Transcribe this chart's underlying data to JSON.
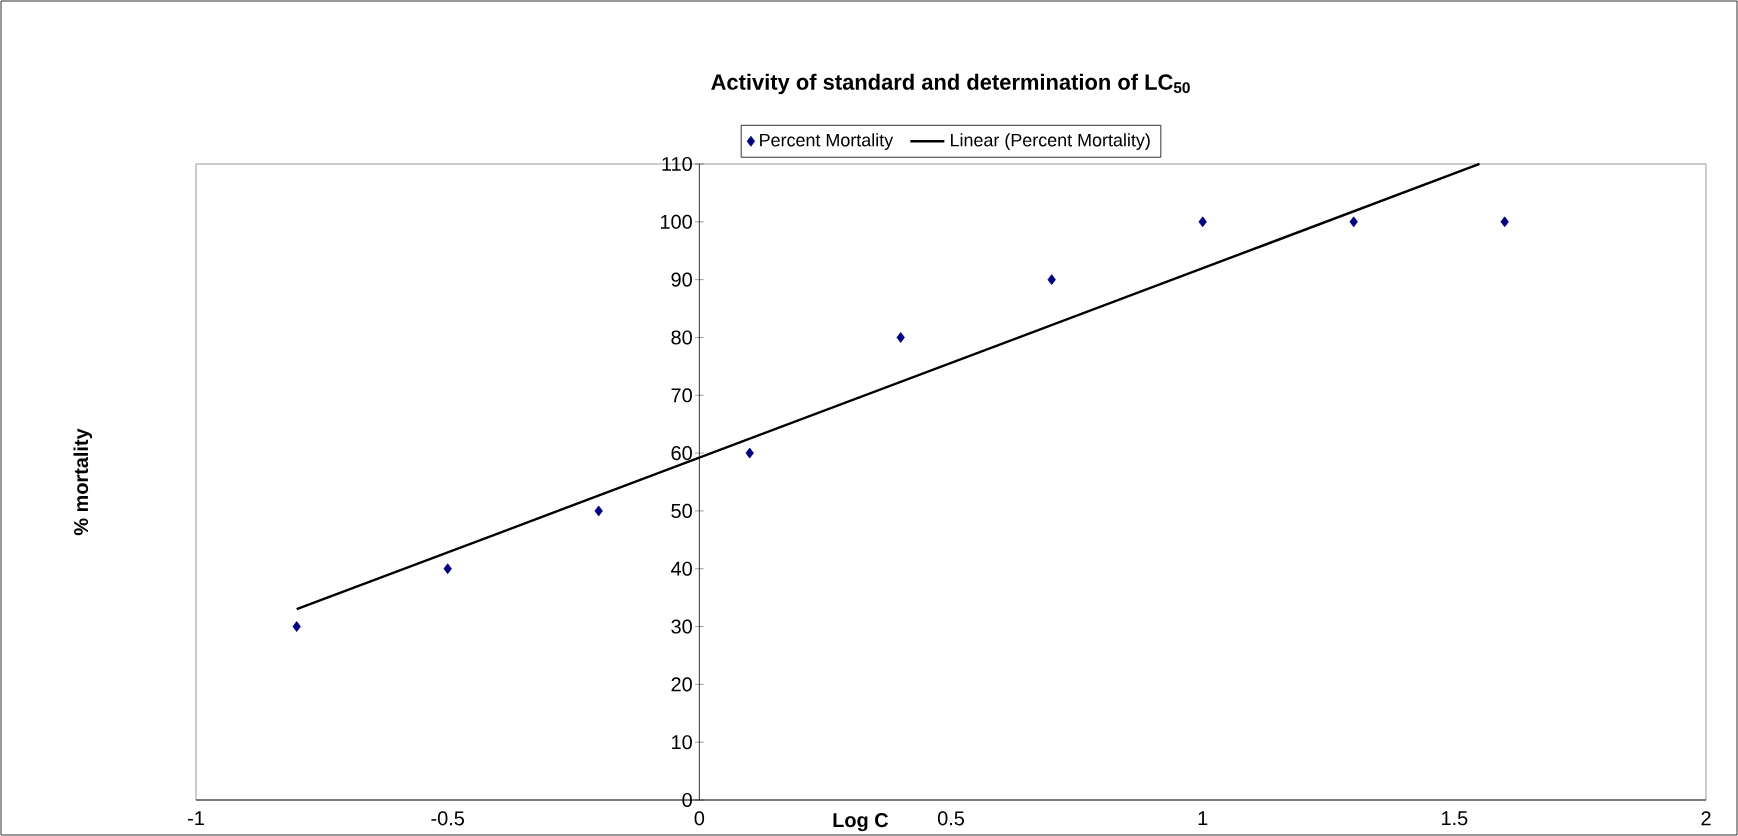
{
  "chart_data": {
    "type": "scatter",
    "title": "Activity of standard and determination of LC$_{50}$",
    "xlabel": "Log C",
    "ylabel": "% mortality",
    "xlim": [
      -1,
      2
    ],
    "ylim": [
      0,
      110
    ],
    "xticks": [
      -1,
      -0.5,
      0,
      0.5,
      1,
      1.5,
      2
    ],
    "yticks": [
      0,
      10,
      20,
      30,
      40,
      50,
      60,
      70,
      80,
      90,
      100,
      110
    ],
    "legend": "top",
    "grid": false,
    "series": [
      {
        "name": "Percent Mortality",
        "color": "#000080",
        "marker": "diamond",
        "x": [
          -0.8,
          -0.5,
          -0.2,
          0.1,
          0.4,
          0.7,
          1.0,
          1.3,
          1.6
        ],
        "values": [
          30,
          40,
          50,
          60,
          80,
          90,
          100,
          100,
          100
        ]
      },
      {
        "name": "Linear (Percent Mortality)",
        "type": "line",
        "color": "#000000",
        "marker": "none",
        "line_style": "solid",
        "x": [
          -0.8,
          1.55
        ],
        "values": [
          33,
          110
        ]
      }
    ]
  }
}
